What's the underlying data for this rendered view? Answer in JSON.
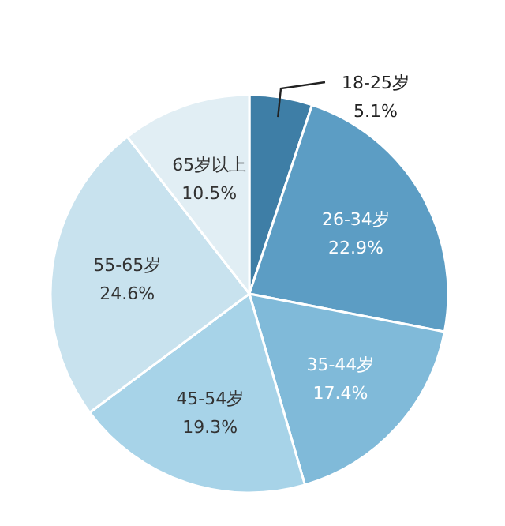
{
  "chart_data": {
    "type": "pie",
    "categories": [
      "18-25岁",
      "26-34岁",
      "35-44岁",
      "45-54岁",
      "55-65岁",
      "65岁以上"
    ],
    "values": [
      5.1,
      22.9,
      17.4,
      19.3,
      24.6,
      10.5
    ],
    "value_labels": [
      "5.1%",
      "22.9%",
      "17.4%",
      "19.3%",
      "24.6%",
      "10.5%"
    ],
    "colors": [
      "#3e7ea6",
      "#5c9dc4",
      "#80bad9",
      "#a7d3e8",
      "#c8e2ee",
      "#e1eef4"
    ]
  }
}
